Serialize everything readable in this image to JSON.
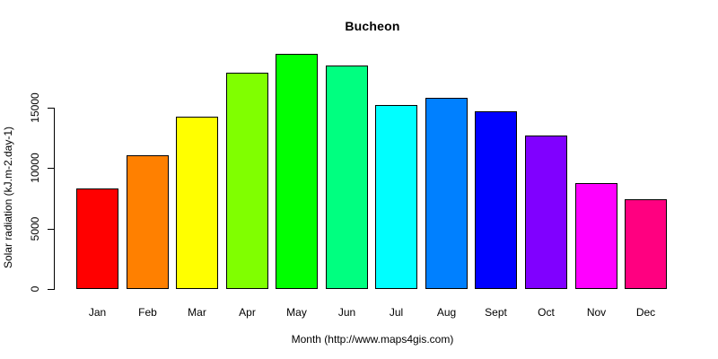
{
  "chart_data": {
    "type": "bar",
    "title": "Bucheon",
    "xlabel": "Month (http://www.maps4gis.com)",
    "ylabel": "Solar radiation (kJ.m-2.day-1)",
    "categories": [
      "Jan",
      "Feb",
      "Mar",
      "Apr",
      "May",
      "Jun",
      "Jul",
      "Aug",
      "Sept",
      "Oct",
      "Nov",
      "Dec"
    ],
    "values": [
      8300,
      11100,
      14300,
      17900,
      19500,
      18500,
      15200,
      15800,
      14700,
      12700,
      8800,
      7400
    ],
    "bar_colors": [
      "#FF0000",
      "#FF8000",
      "#FFFF00",
      "#80FF00",
      "#00FF00",
      "#00FF80",
      "#00FFFF",
      "#0080FF",
      "#0000FF",
      "#8000FF",
      "#FF00FF",
      "#FF0080"
    ],
    "bar_border_color": "#000000",
    "axis_color": "#000000",
    "text_color": "#000000",
    "background": "#FFFFFF",
    "yticks": [
      0,
      5000,
      10000,
      15000
    ],
    "ylim": [
      0,
      20000
    ],
    "grid": false,
    "legend_position": "none"
  }
}
